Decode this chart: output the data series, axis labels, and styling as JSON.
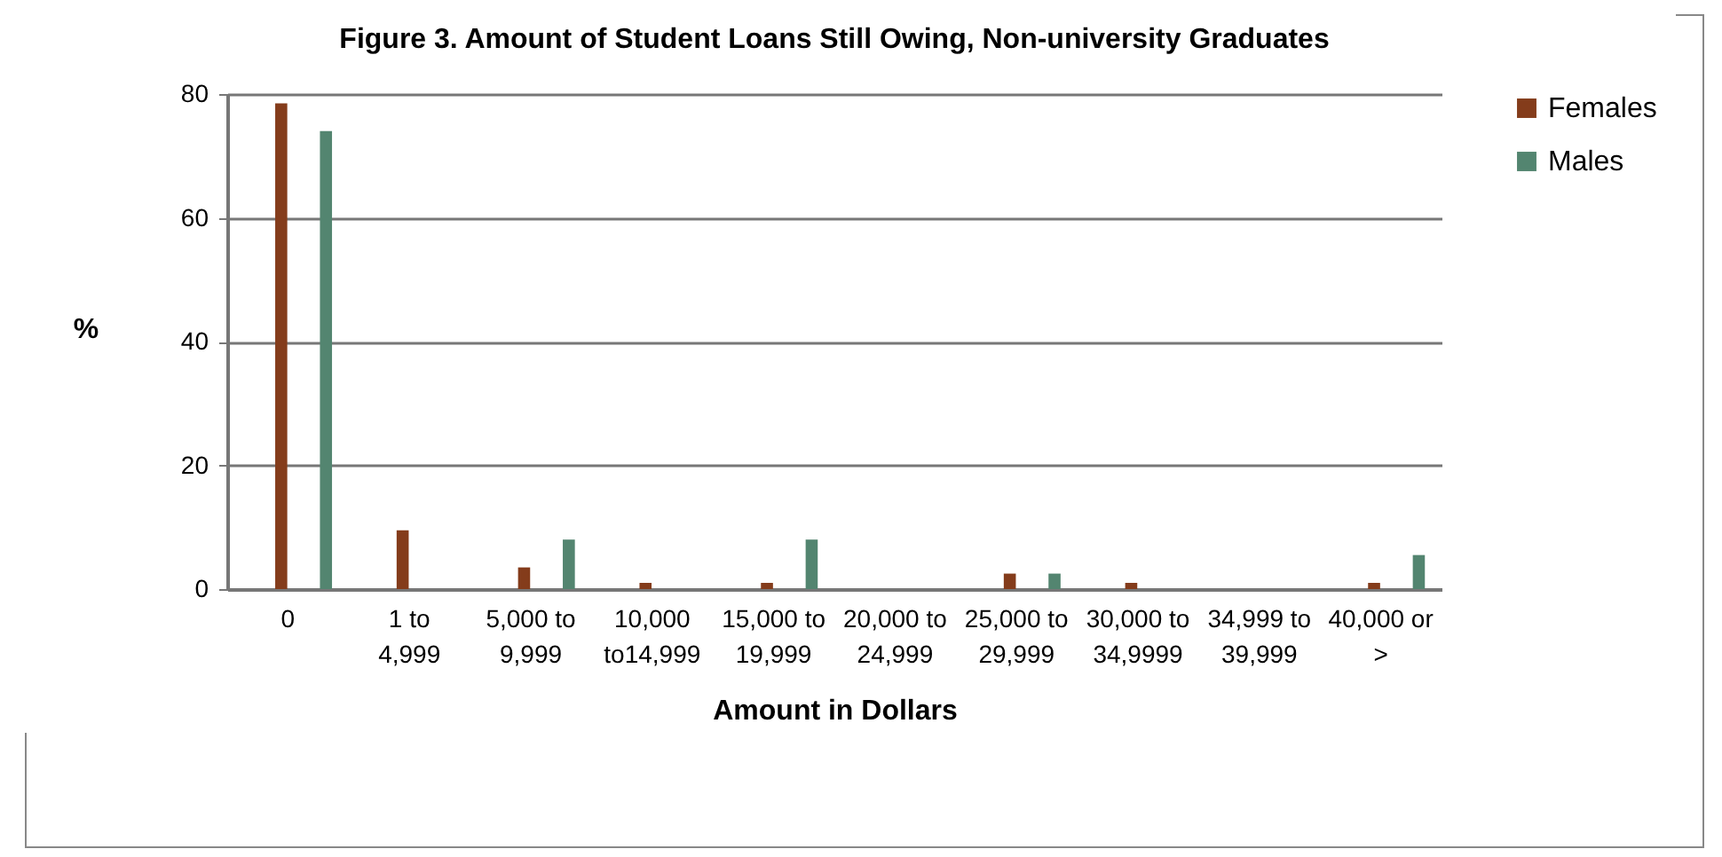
{
  "chart_data": {
    "type": "bar",
    "title": "Figure 3. Amount of Student Loans Still Owing, Non-university Graduates",
    "xlabel": "Amount  in Dollars",
    "ylabel": "%",
    "categories": [
      "0",
      "1 to 4,999",
      "5,000 to 9,999",
      "10,000 to14,999",
      "15,000 to 19,999",
      "20,000 to 24,999",
      "25,000 to 29,999",
      "30,000 to 34,9999",
      "34,999 to 39,999",
      "40,000 or >"
    ],
    "series": [
      {
        "name": "Females",
        "color": "#843c1b",
        "values": [
          78.5,
          9.5,
          3.5,
          1,
          1,
          0,
          2.5,
          1,
          0,
          1
        ]
      },
      {
        "name": "Males",
        "color": "#538570",
        "values": [
          74,
          0,
          8,
          0,
          8,
          0,
          2.5,
          0,
          0,
          5.5
        ]
      }
    ],
    "ylim": [
      0,
      80
    ],
    "yticks": [
      0,
      20,
      40,
      60,
      80
    ],
    "grid": "y",
    "legend": "right"
  }
}
